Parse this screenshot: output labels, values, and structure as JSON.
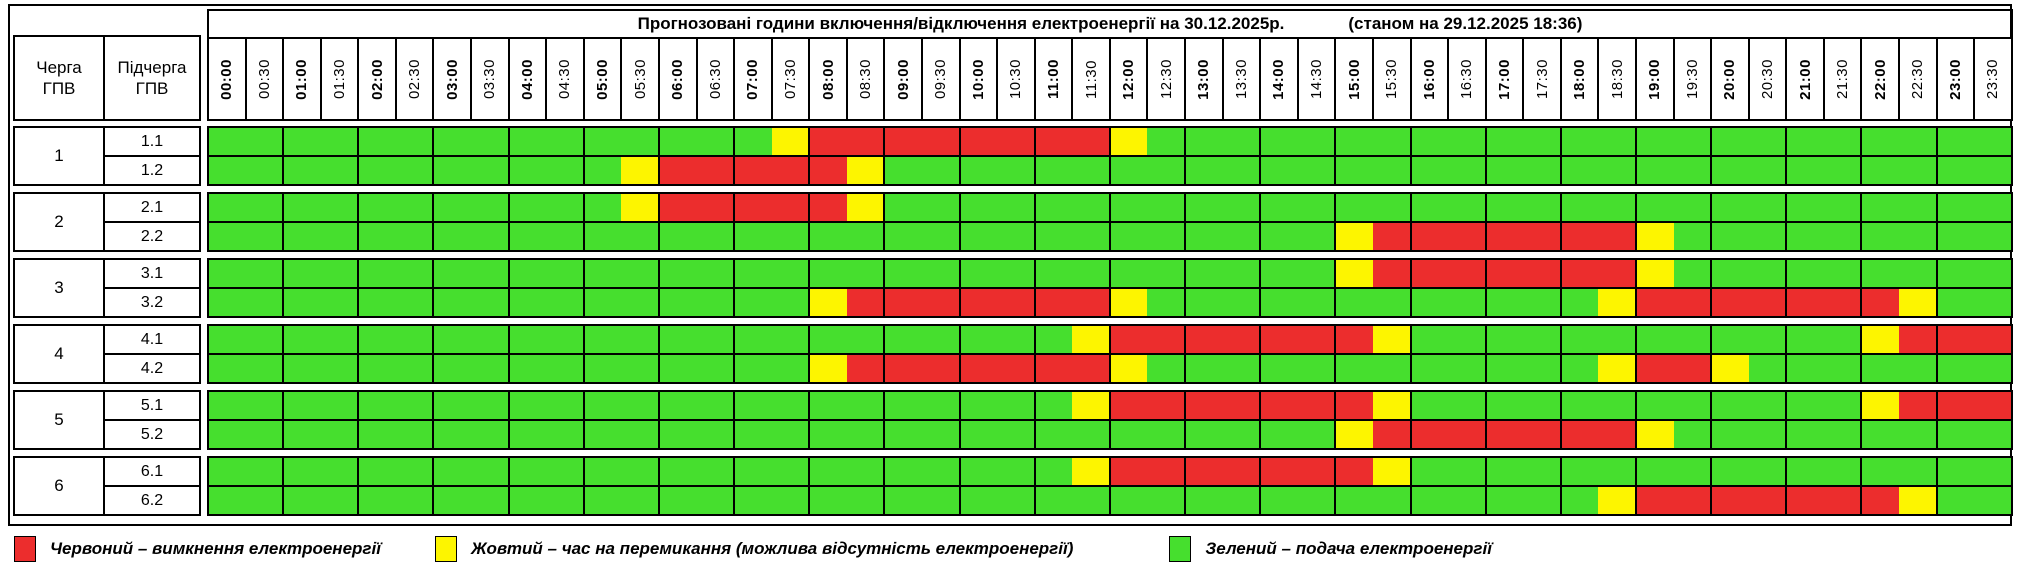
{
  "title": {
    "main": "Прогнозовані години включення/відключення електроенергії на 30.12.2025р.",
    "timestamp": "(станом на 29.12.2025 18:36)"
  },
  "headers": {
    "queue": "Черга\nГПВ",
    "subqueue": "Підчерга\nГПВ"
  },
  "chart_data": {
    "type": "heatmap",
    "title": "Прогнозовані години включення/відключення електроенергії на 30.12.2025р. (станом на 29.12.2025 18:36)",
    "x": [
      "00:00",
      "00:30",
      "01:00",
      "01:30",
      "02:00",
      "02:30",
      "03:00",
      "03:30",
      "04:00",
      "04:30",
      "05:00",
      "05:30",
      "06:00",
      "06:30",
      "07:00",
      "07:30",
      "08:00",
      "08:30",
      "09:00",
      "09:30",
      "10:00",
      "10:30",
      "11:00",
      "11:30",
      "12:00",
      "12:30",
      "13:00",
      "13:30",
      "14:00",
      "14:30",
      "15:00",
      "15:30",
      "16:00",
      "16:30",
      "17:00",
      "17:30",
      "18:00",
      "18:30",
      "19:00",
      "19:30",
      "20:00",
      "20:30",
      "21:00",
      "21:30",
      "22:00",
      "22:30",
      "23:00",
      "23:30"
    ],
    "cell_states": {
      "G": "green: подача електроенергії",
      "Y": "yellow: час на перемикання",
      "R": "red: вимкнення електроенергії"
    },
    "rows": [
      {
        "queue": "1",
        "subqueue": "1.1",
        "cells": "GGGGGGGGGGGGGGGYRRRRRRRRYGGGGGGGGGGGGGGGGGGGGGGG"
      },
      {
        "queue": "1",
        "subqueue": "1.2",
        "cells": "GGGGGGGGGGGYRRRRRYGGGGGGGGGGGGGGGGGGGGGGGGGGGGGG"
      },
      {
        "queue": "2",
        "subqueue": "2.1",
        "cells": "GGGGGGGGGGGYRRRRRYGGGGGGGGGGGGGGGGGGGGGGGGGGGGGG"
      },
      {
        "queue": "2",
        "subqueue": "2.2",
        "cells": "GGGGGGGGGGGGGGGGGGGGGGGGGGGGGGYRRRRRRRYGGGGGGGGG"
      },
      {
        "queue": "3",
        "subqueue": "3.1",
        "cells": "GGGGGGGGGGGGGGGGGGGGGGGGGGGGGGYRRRRRRRYGGGGGGGGG"
      },
      {
        "queue": "3",
        "subqueue": "3.2",
        "cells": "GGGGGGGGGGGGGGGGYRRRRRRRYGGGGGGGGGGGGYRRRRRRRYGG"
      },
      {
        "queue": "4",
        "subqueue": "4.1",
        "cells": "GGGGGGGGGGGGGGGGGGGGGGGYRRRRRRRYGGGGGGGGGGGGYRRR"
      },
      {
        "queue": "4",
        "subqueue": "4.2",
        "cells": "GGGGGGGGGGGGGGGGYRRRRRRRYGGGGGGGGGGGGYRRYGGGGGGG"
      },
      {
        "queue": "5",
        "subqueue": "5.1",
        "cells": "GGGGGGGGGGGGGGGGGGGGGGGYRRRRRRRYGGGGGGGGGGGGYRRR"
      },
      {
        "queue": "5",
        "subqueue": "5.2",
        "cells": "GGGGGGGGGGGGGGGGGGGGGGGGGGGGGGYRRRRRRRYGGGGGGGGG"
      },
      {
        "queue": "6",
        "subqueue": "6.1",
        "cells": "GGGGGGGGGGGGGGGGGGGGGGGYRRRRRRRYGGGGGGGGGGGGGGGG"
      },
      {
        "queue": "6",
        "subqueue": "6.2",
        "cells": "GGGGGGGGGGGGGGGGGGGGGGGGGGGGGGGGGGGGGYRRRRRRRYGG"
      }
    ]
  },
  "colors": {
    "G": "#46DF2E",
    "Y": "#FDF500",
    "R": "#EC2D2D",
    "border": "#000000"
  },
  "legend": [
    {
      "state": "R",
      "label": "Червоний – вимкнення електроенергії"
    },
    {
      "state": "Y",
      "label": "Жовтий – час на перемикання (можлива відсутність електроенергії)"
    },
    {
      "state": "G",
      "label": "Зелений – подача електроенергії"
    }
  ]
}
